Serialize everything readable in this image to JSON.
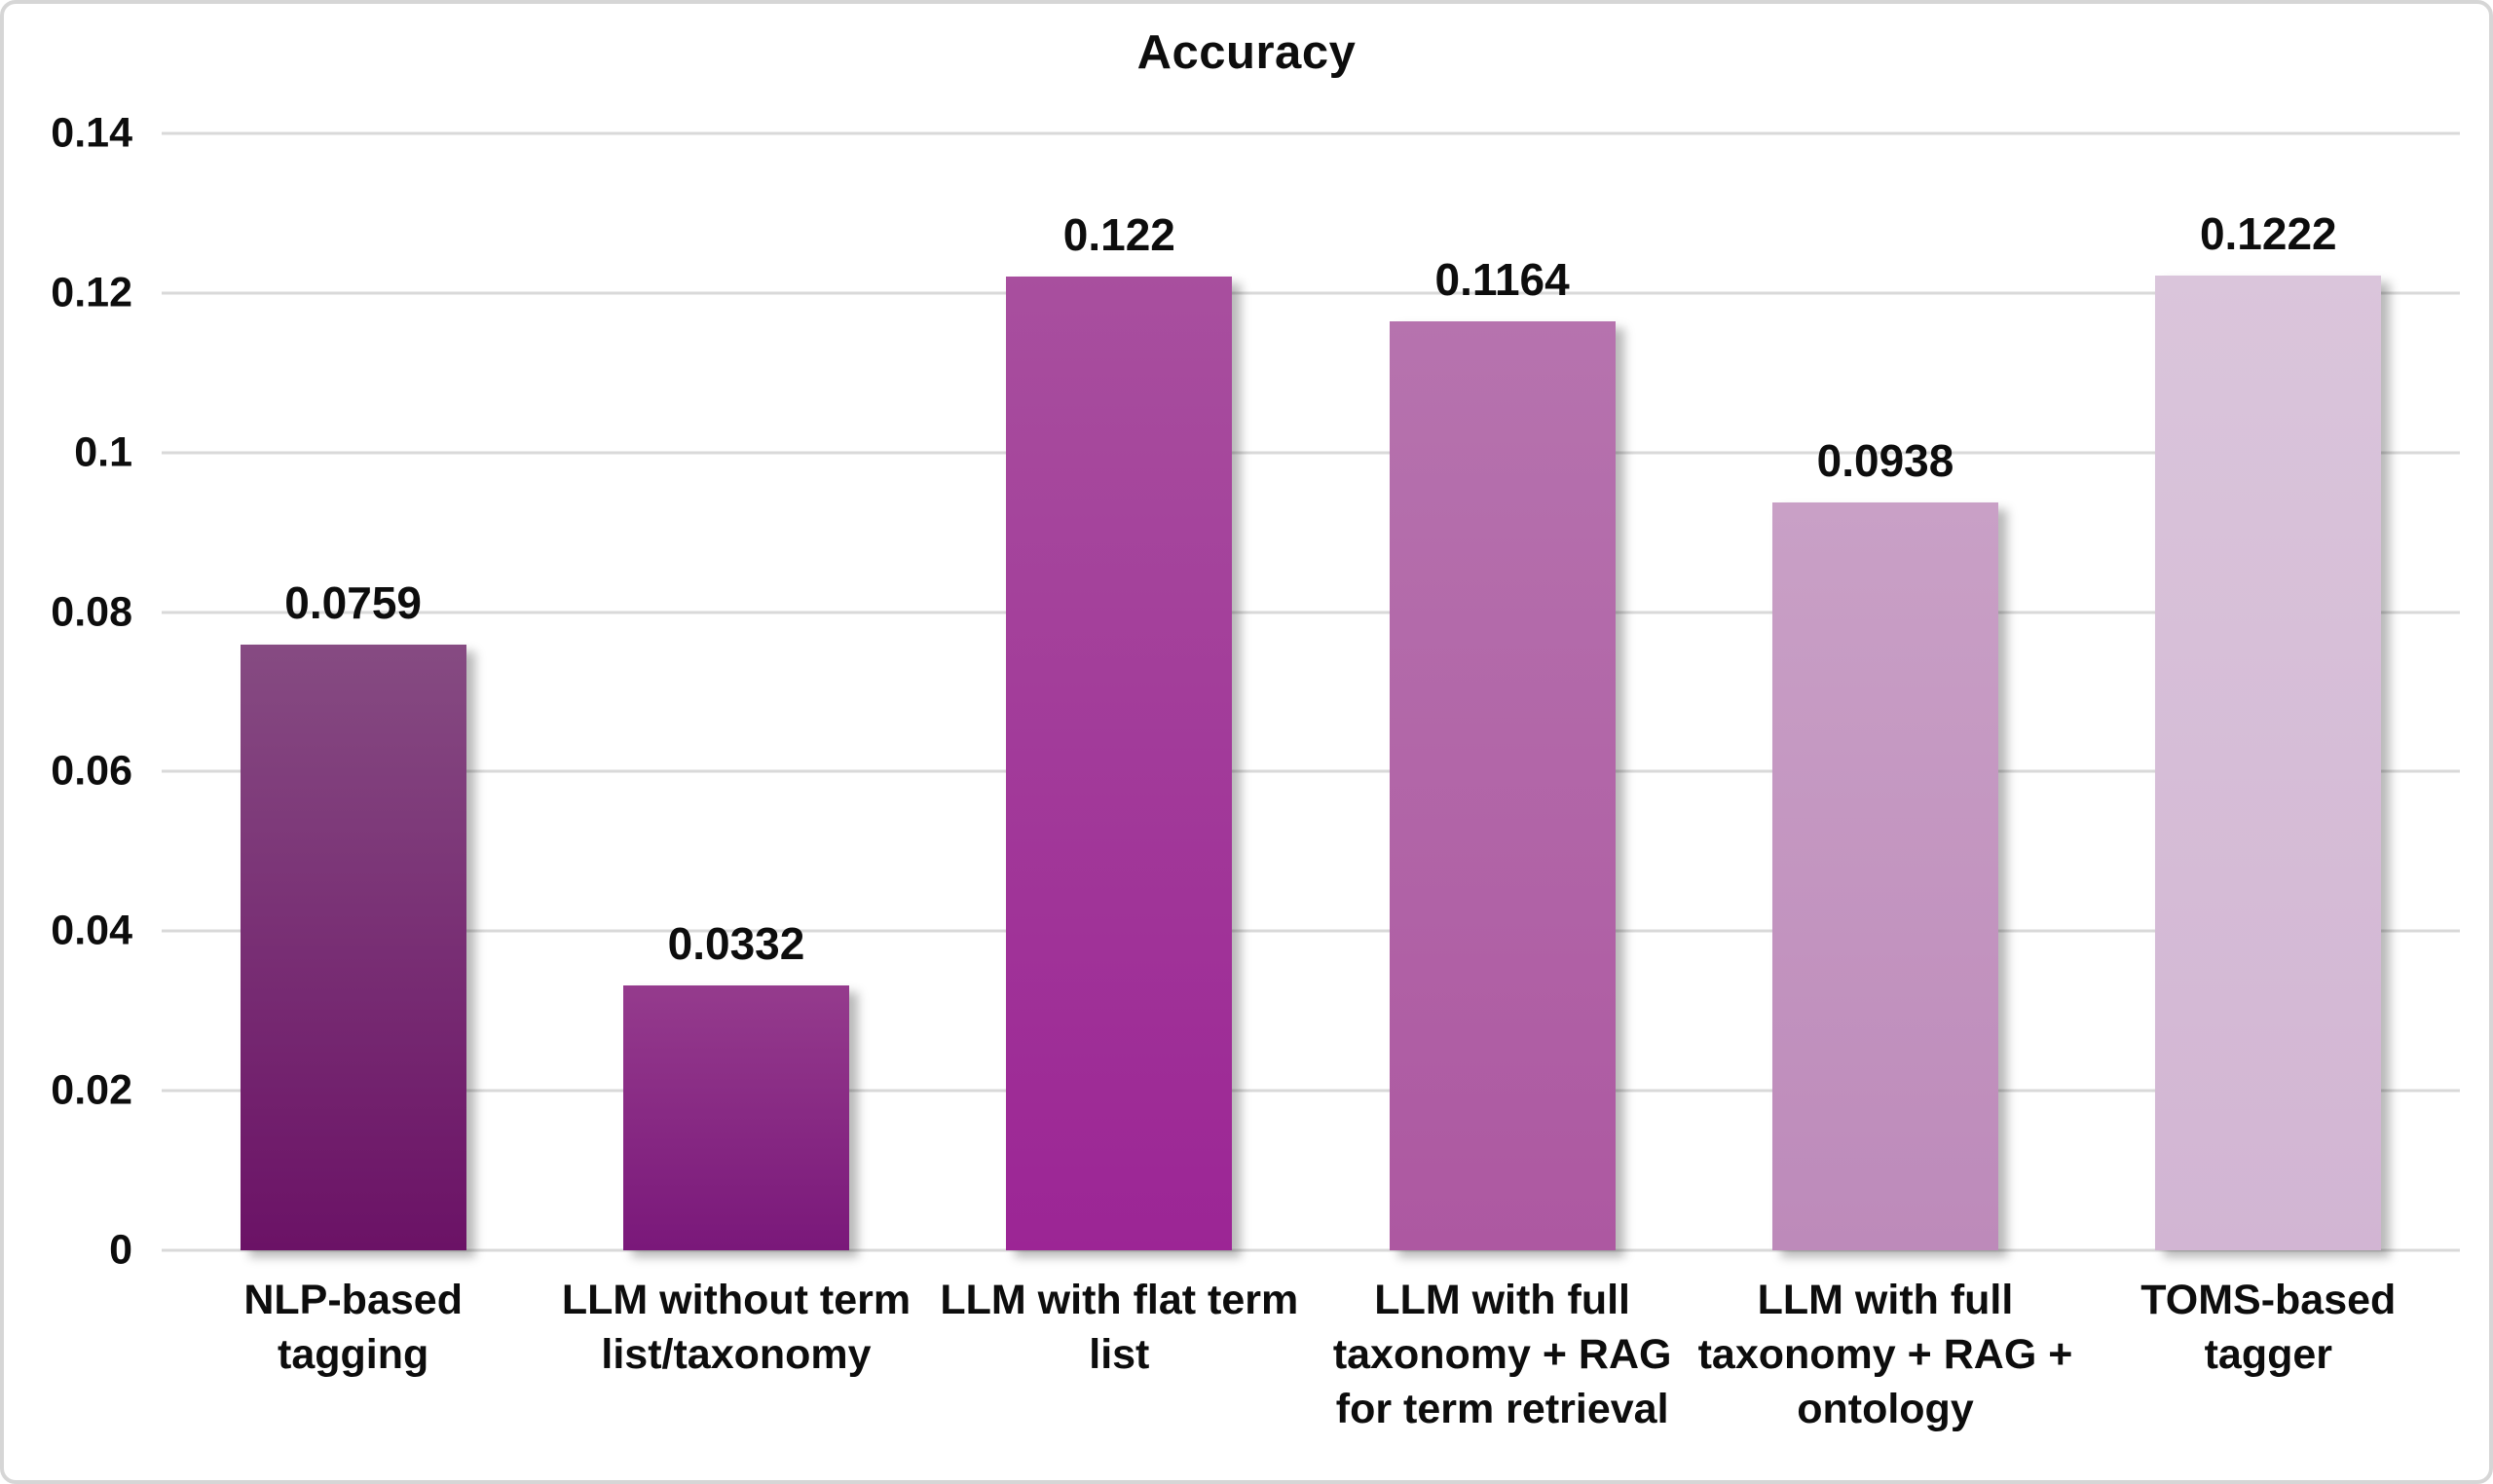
{
  "chart_data": {
    "type": "bar",
    "title": "Accuracy",
    "categories": [
      "NLP-based tagging",
      "LLM without term\nlist/taxonomy",
      "LLM with flat term\nlist",
      "LLM with full\ntaxonomy + RAG\nfor term retrieval",
      "LLM with full\ntaxonomy + RAG +\nontology",
      "TOMS-based\ntagger"
    ],
    "values": [
      0.0759,
      0.0332,
      0.122,
      0.1164,
      0.0938,
      0.1222
    ],
    "value_labels": [
      "0.0759",
      "0.0332",
      "0.122",
      "0.1164",
      "0.0938",
      "0.1222"
    ],
    "xlabel": "",
    "ylabel": "",
    "ylim": [
      0,
      0.14
    ],
    "yticks": [
      0,
      0.02,
      0.04,
      0.06,
      0.08,
      0.1,
      0.12,
      0.14
    ],
    "ytick_labels": [
      "0",
      "0.02",
      "0.04",
      "0.06",
      "0.08",
      "0.1",
      "0.12",
      "0.14"
    ],
    "grid": true,
    "gridline_color": "#d9d9d9",
    "legend_position": "none",
    "bar_colors": [
      {
        "top": "#864B82",
        "bottom": "#6B1266"
      },
      {
        "top": "#953B8D",
        "bottom": "#7A187A"
      },
      {
        "top": "#A84F9E",
        "bottom": "#9C2595"
      },
      {
        "top": "#B673AE",
        "bottom": "#AD58A1"
      },
      {
        "top": "#C9A0C6",
        "bottom": "#BD8ABA"
      },
      {
        "top": "#DAC5DB",
        "bottom": "#D2B5D3"
      }
    ]
  }
}
